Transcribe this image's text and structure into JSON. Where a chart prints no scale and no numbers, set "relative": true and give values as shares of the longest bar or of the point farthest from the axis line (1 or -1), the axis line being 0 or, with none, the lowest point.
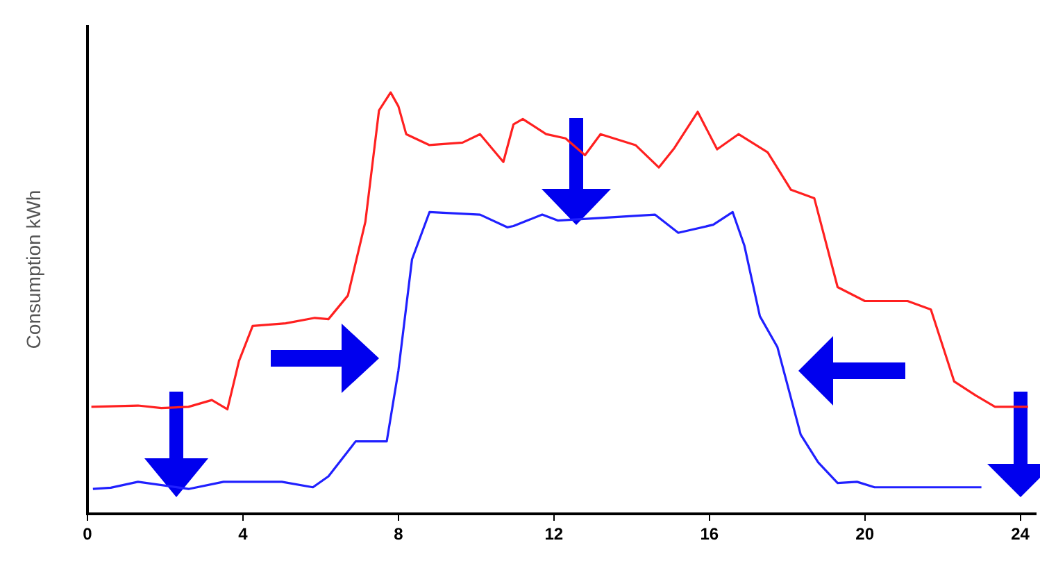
{
  "chart_data": {
    "type": "line",
    "ylabel": "Consumption kWh",
    "relative": true,
    "xlim": [
      0,
      24.4
    ],
    "xticks": [
      0,
      4,
      8,
      12,
      16,
      20,
      24
    ],
    "grid": false,
    "legend": false,
    "marker": "none",
    "line_style": "solid",
    "series": [
      {
        "color": "#ff2020",
        "x": [
          0.1,
          1.3,
          1.9,
          2.6,
          3.2,
          3.6,
          3.9,
          4.25,
          5.1,
          5.85,
          6.2,
          6.7,
          7.15,
          7.5,
          7.8,
          8.0,
          8.2,
          8.8,
          9.65,
          10.1,
          10.7,
          10.96,
          11.2,
          11.8,
          12.3,
          12.8,
          13.2,
          14.1,
          14.7,
          15.1,
          15.7,
          16.2,
          16.75,
          17.5,
          18.1,
          18.7,
          19.3,
          20.0,
          21.1,
          21.7,
          22.3,
          22.85,
          23.35,
          24.2
        ],
        "values": [
          0.254,
          0.257,
          0.251,
          0.254,
          0.27,
          0.248,
          0.363,
          0.446,
          0.452,
          0.465,
          0.462,
          0.518,
          0.693,
          0.957,
          1.0,
          0.967,
          0.901,
          0.875,
          0.881,
          0.901,
          0.835,
          0.924,
          0.937,
          0.901,
          0.891,
          0.851,
          0.901,
          0.875,
          0.822,
          0.868,
          0.954,
          0.865,
          0.901,
          0.858,
          0.769,
          0.749,
          0.538,
          0.505,
          0.505,
          0.485,
          0.314,
          0.281,
          0.254,
          0.254
        ]
      },
      {
        "color": "#2020ff",
        "x": [
          0.14,
          0.6,
          1.3,
          2.6,
          3.5,
          5.0,
          5.8,
          6.2,
          6.9,
          7.7,
          8.0,
          8.35,
          8.8,
          10.1,
          10.8,
          10.96,
          11.7,
          12.1,
          14.6,
          15.2,
          16.1,
          16.6,
          16.9,
          17.3,
          17.75,
          18.35,
          18.8,
          19.3,
          19.8,
          20.25,
          23.0
        ],
        "values": [
          0.059,
          0.062,
          0.076,
          0.059,
          0.076,
          0.076,
          0.063,
          0.089,
          0.172,
          0.172,
          0.34,
          0.604,
          0.716,
          0.71,
          0.68,
          0.683,
          0.71,
          0.696,
          0.71,
          0.667,
          0.686,
          0.716,
          0.637,
          0.469,
          0.396,
          0.188,
          0.122,
          0.073,
          0.076,
          0.063,
          0.063
        ]
      }
    ]
  }
}
